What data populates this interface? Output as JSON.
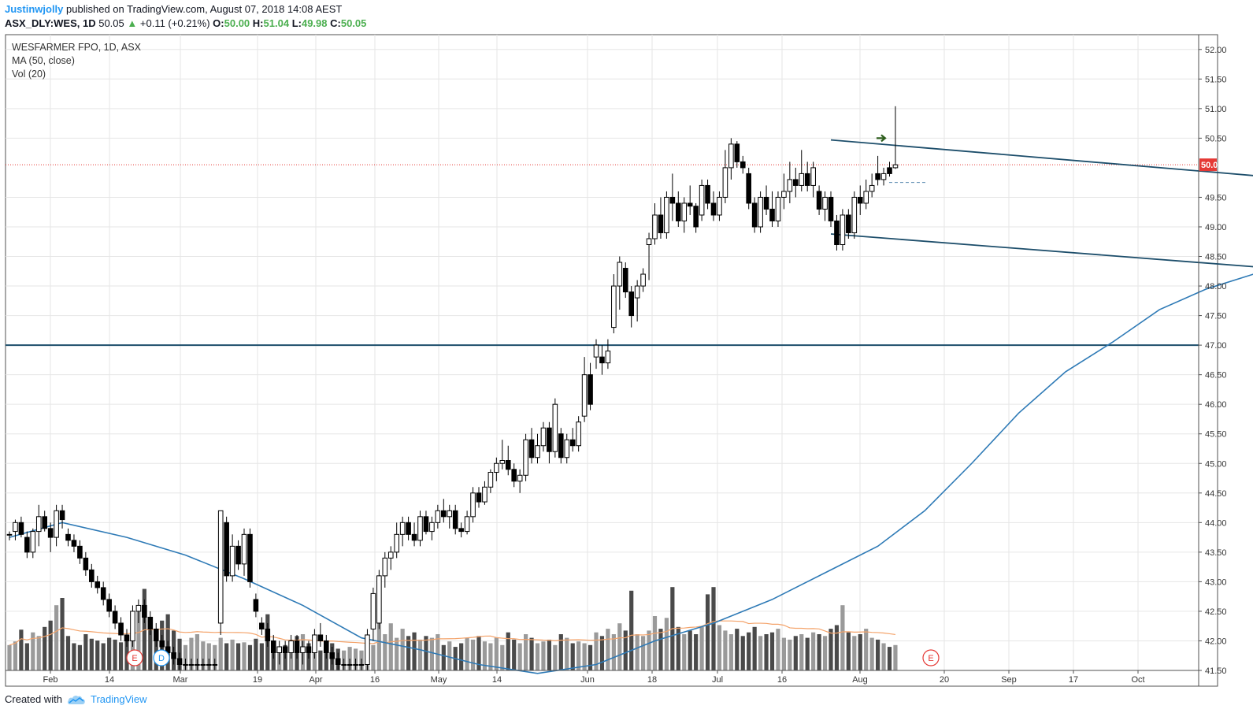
{
  "header": {
    "author": "Justinwjolly",
    "published": "published on TradingView.com, August 07, 2018 14:08 AEST",
    "symbol": "ASX_DLY:WES, 1D",
    "price": "50.05",
    "change_arrow": "▲",
    "change": "+0.11 (+0.21%)",
    "open_label": "O:",
    "open": "50.00",
    "high_label": "H:",
    "high": "51.04",
    "low_label": "L:",
    "low": "49.98",
    "close_label": "C:",
    "close": "50.05"
  },
  "legend": {
    "title": "WESFARMER FPO, 1D, ASX",
    "ma": "MA (50, close)",
    "vol": "Vol (20)"
  },
  "footer": {
    "created": "Created with",
    "brand": "TradingView"
  },
  "colors": {
    "price_line": "#e53935",
    "ma_line": "#2e7ab6",
    "vol_ma": "#f4a36a",
    "channel": "#1d4e6b",
    "support": "#1d4e6b",
    "arrow": "#2e5e1e"
  },
  "events": [
    {
      "label": "E",
      "x_label": "Feb 20",
      "color": "#e53935"
    },
    {
      "label": "D",
      "x_label": "Feb 22",
      "color": "#2196f3"
    },
    {
      "label": "E",
      "x_label": "Aug 17",
      "color": "#e53935"
    }
  ],
  "chart_data": {
    "type": "candlestick",
    "y_ticks": [
      "52.00",
      "51.50",
      "51.00",
      "50.50",
      "50.05",
      "49.50",
      "49.00",
      "48.50",
      "48.00",
      "47.50",
      "47.00",
      "46.50",
      "46.00",
      "45.50",
      "45.00",
      "44.50",
      "44.00",
      "43.50",
      "43.00",
      "42.50",
      "42.00",
      "41.50"
    ],
    "y_range": [
      41.5,
      52.25
    ],
    "x_ticks": [
      "Feb",
      "14",
      "Mar",
      "19",
      "Apr",
      "16",
      "May",
      "14",
      "Jun",
      "18",
      "Jul",
      "16",
      "Aug",
      "20",
      "Sep",
      "17",
      "Oct"
    ],
    "last_price": 50.05,
    "support_level": 47.0,
    "ohlc": [
      [
        43.8,
        43.85,
        43.7,
        43.8
      ],
      [
        43.85,
        44.05,
        43.7,
        44.0
      ],
      [
        44.0,
        44.1,
        43.75,
        43.8
      ],
      [
        43.75,
        43.85,
        43.4,
        43.5
      ],
      [
        43.5,
        43.9,
        43.4,
        43.85
      ],
      [
        43.85,
        44.3,
        43.6,
        44.1
      ],
      [
        44.1,
        44.2,
        43.85,
        43.9
      ],
      [
        43.9,
        44.0,
        43.5,
        43.75
      ],
      [
        43.75,
        44.3,
        43.6,
        44.2
      ],
      [
        44.2,
        44.3,
        43.9,
        44.05
      ],
      [
        43.8,
        43.9,
        43.6,
        43.7
      ],
      [
        43.7,
        43.8,
        43.5,
        43.6
      ],
      [
        43.6,
        43.7,
        43.3,
        43.4
      ],
      [
        43.4,
        43.5,
        43.1,
        43.2
      ],
      [
        43.2,
        43.3,
        42.9,
        43.0
      ],
      [
        43.0,
        43.1,
        42.8,
        42.9
      ],
      [
        42.9,
        43.0,
        42.6,
        42.7
      ],
      [
        42.7,
        42.8,
        42.4,
        42.5
      ],
      [
        42.5,
        42.6,
        42.2,
        42.3
      ],
      [
        42.3,
        42.4,
        42.0,
        42.1
      ],
      [
        42.1,
        42.2,
        41.9,
        42.0
      ],
      [
        42.0,
        42.6,
        41.9,
        42.5
      ],
      [
        42.5,
        42.7,
        42.3,
        42.6
      ],
      [
        42.6,
        42.7,
        42.3,
        42.4
      ],
      [
        42.4,
        42.5,
        42.1,
        42.2
      ],
      [
        42.2,
        42.3,
        41.9,
        42.0
      ],
      [
        42.0,
        42.1,
        41.8,
        41.9
      ],
      [
        41.9,
        42.0,
        41.7,
        41.8
      ],
      [
        41.8,
        41.9,
        41.6,
        41.7
      ],
      [
        41.7,
        41.8,
        41.5,
        41.6
      ],
      [
        41.6,
        41.7,
        41.5,
        41.6
      ],
      [
        41.6,
        41.7,
        41.5,
        41.6
      ],
      [
        41.6,
        41.7,
        41.5,
        41.6
      ],
      [
        41.6,
        41.7,
        41.5,
        41.6
      ],
      [
        41.6,
        41.7,
        41.5,
        41.6
      ],
      [
        41.6,
        41.7,
        41.5,
        41.6
      ],
      [
        42.3,
        44.2,
        42.1,
        44.2
      ],
      [
        44.0,
        44.1,
        43.0,
        43.1
      ],
      [
        43.1,
        43.8,
        43.0,
        43.6
      ],
      [
        43.6,
        43.7,
        43.2,
        43.3
      ],
      [
        43.3,
        43.9,
        43.1,
        43.8
      ],
      [
        43.8,
        43.9,
        42.9,
        43.0
      ],
      [
        42.7,
        42.8,
        42.4,
        42.5
      ],
      [
        42.3,
        42.4,
        42.1,
        42.2
      ],
      [
        42.2,
        42.3,
        41.9,
        42.0
      ],
      [
        42.0,
        42.1,
        41.7,
        41.8
      ],
      [
        41.8,
        42.0,
        41.6,
        41.9
      ],
      [
        41.9,
        42.0,
        41.7,
        41.8
      ],
      [
        41.8,
        42.1,
        41.7,
        42.0
      ],
      [
        42.0,
        42.1,
        41.7,
        41.8
      ],
      [
        41.8,
        42.0,
        41.6,
        41.9
      ],
      [
        41.9,
        42.0,
        41.7,
        41.8
      ],
      [
        41.8,
        42.2,
        41.7,
        42.1
      ],
      [
        42.1,
        42.3,
        41.9,
        42.0
      ],
      [
        42.0,
        42.1,
        41.7,
        41.8
      ],
      [
        41.8,
        41.9,
        41.6,
        41.7
      ],
      [
        41.7,
        41.8,
        41.5,
        41.6
      ],
      [
        41.6,
        41.7,
        41.5,
        41.6
      ],
      [
        41.6,
        41.7,
        41.5,
        41.6
      ],
      [
        41.6,
        41.7,
        41.5,
        41.6
      ],
      [
        41.6,
        41.7,
        41.5,
        41.6
      ],
      [
        41.6,
        42.2,
        41.5,
        42.1
      ],
      [
        42.2,
        42.9,
        42.0,
        42.8
      ],
      [
        42.3,
        43.2,
        42.2,
        43.1
      ],
      [
        43.1,
        43.5,
        42.9,
        43.4
      ],
      [
        43.4,
        43.6,
        43.2,
        43.5
      ],
      [
        43.5,
        44.0,
        43.4,
        43.8
      ],
      [
        43.8,
        44.1,
        43.6,
        44.0
      ],
      [
        44.0,
        44.1,
        43.7,
        43.8
      ],
      [
        43.8,
        44.0,
        43.6,
        43.7
      ],
      [
        43.7,
        44.2,
        43.6,
        44.1
      ],
      [
        44.1,
        44.2,
        43.8,
        43.85
      ],
      [
        43.85,
        44.1,
        43.7,
        44.0
      ],
      [
        44.0,
        44.3,
        43.9,
        44.2
      ],
      [
        44.2,
        44.4,
        44.0,
        44.1
      ],
      [
        44.1,
        44.3,
        43.9,
        44.2
      ],
      [
        44.2,
        44.3,
        43.8,
        43.9
      ],
      [
        43.9,
        44.0,
        43.75,
        43.85
      ],
      [
        43.85,
        44.2,
        43.8,
        44.1
      ],
      [
        44.1,
        44.6,
        44.0,
        44.5
      ],
      [
        44.5,
        44.6,
        44.25,
        44.35
      ],
      [
        44.35,
        44.7,
        44.3,
        44.6
      ],
      [
        44.6,
        44.9,
        44.5,
        44.85
      ],
      [
        44.85,
        45.1,
        44.7,
        45.0
      ],
      [
        45.0,
        45.4,
        44.9,
        45.05
      ],
      [
        45.05,
        45.3,
        44.8,
        44.9
      ],
      [
        44.9,
        45.0,
        44.6,
        44.7
      ],
      [
        44.7,
        44.9,
        44.5,
        44.8
      ],
      [
        44.8,
        45.5,
        44.7,
        45.4
      ],
      [
        45.4,
        45.6,
        45.0,
        45.1
      ],
      [
        45.1,
        45.5,
        45.0,
        45.3
      ],
      [
        45.3,
        45.7,
        45.2,
        45.6
      ],
      [
        45.6,
        45.7,
        45.0,
        45.2
      ],
      [
        45.2,
        46.1,
        45.1,
        46.0
      ],
      [
        45.5,
        45.6,
        45.0,
        45.1
      ],
      [
        45.1,
        45.5,
        45.0,
        45.4
      ],
      [
        45.4,
        45.6,
        45.2,
        45.3
      ],
      [
        45.3,
        45.8,
        45.2,
        45.7
      ],
      [
        45.8,
        46.8,
        45.7,
        46.5
      ],
      [
        46.5,
        46.7,
        45.9,
        46.0
      ],
      [
        46.8,
        47.1,
        46.6,
        47.0
      ],
      [
        46.8,
        47.0,
        46.5,
        46.7
      ],
      [
        46.7,
        47.1,
        46.6,
        46.9
      ],
      [
        47.3,
        48.2,
        47.2,
        48.0
      ],
      [
        48.0,
        48.5,
        47.6,
        48.4
      ],
      [
        48.3,
        48.4,
        47.8,
        47.9
      ],
      [
        47.9,
        48.0,
        47.3,
        47.5
      ],
      [
        47.8,
        48.1,
        47.4,
        48.0
      ],
      [
        48.0,
        48.3,
        47.9,
        48.2
      ],
      [
        48.7,
        48.9,
        48.1,
        48.8
      ],
      [
        48.8,
        49.4,
        48.7,
        49.2
      ],
      [
        49.2,
        49.5,
        48.8,
        48.9
      ],
      [
        48.9,
        49.6,
        48.8,
        49.5
      ],
      [
        49.5,
        49.9,
        49.1,
        49.4
      ],
      [
        49.4,
        49.6,
        49.0,
        49.1
      ],
      [
        49.1,
        49.5,
        48.9,
        49.4
      ],
      [
        49.4,
        49.7,
        49.2,
        49.35
      ],
      [
        49.35,
        49.4,
        48.9,
        49.0
      ],
      [
        49.2,
        49.8,
        49.1,
        49.7
      ],
      [
        49.7,
        49.8,
        49.3,
        49.4
      ],
      [
        49.4,
        49.6,
        49.1,
        49.2
      ],
      [
        49.2,
        49.6,
        49.1,
        49.5
      ],
      [
        49.5,
        50.3,
        49.4,
        50.0
      ],
      [
        50.0,
        50.5,
        49.8,
        50.4
      ],
      [
        50.4,
        50.45,
        50.0,
        50.1
      ],
      [
        50.1,
        50.2,
        49.9,
        50.0
      ],
      [
        49.9,
        50.0,
        49.3,
        49.4
      ],
      [
        49.4,
        49.5,
        48.9,
        49.0
      ],
      [
        49.0,
        49.6,
        48.9,
        49.5
      ],
      [
        49.5,
        49.7,
        49.2,
        49.3
      ],
      [
        49.3,
        49.6,
        49.0,
        49.1
      ],
      [
        49.1,
        49.6,
        49.0,
        49.5
      ],
      [
        49.5,
        49.9,
        49.3,
        49.6
      ],
      [
        49.6,
        50.1,
        49.4,
        49.8
      ],
      [
        49.8,
        50.0,
        49.5,
        49.7
      ],
      [
        49.7,
        50.3,
        49.6,
        49.9
      ],
      [
        49.9,
        50.1,
        49.6,
        49.7
      ],
      [
        49.7,
        50.1,
        49.5,
        50.0
      ],
      [
        49.6,
        49.7,
        49.2,
        49.3
      ],
      [
        49.3,
        49.6,
        49.1,
        49.5
      ],
      [
        49.5,
        49.6,
        49.0,
        49.1
      ],
      [
        49.1,
        49.2,
        48.6,
        48.7
      ],
      [
        48.7,
        49.3,
        48.6,
        49.2
      ],
      [
        49.2,
        49.3,
        48.8,
        48.9
      ],
      [
        48.9,
        49.6,
        48.8,
        49.5
      ],
      [
        49.5,
        49.7,
        49.2,
        49.4
      ],
      [
        49.4,
        49.8,
        49.3,
        49.6
      ],
      [
        49.6,
        49.9,
        49.5,
        49.7
      ],
      [
        49.9,
        50.2,
        49.7,
        49.8
      ],
      [
        49.8,
        50.0,
        49.7,
        49.9
      ],
      [
        50.0,
        50.1,
        49.85,
        49.9
      ],
      [
        50.0,
        51.04,
        49.98,
        50.05
      ]
    ],
    "volume_relative": [
      0.28,
      0.32,
      0.45,
      0.3,
      0.42,
      0.38,
      0.48,
      0.55,
      0.72,
      0.8,
      0.38,
      0.3,
      0.28,
      0.4,
      0.35,
      0.33,
      0.3,
      0.36,
      0.34,
      0.31,
      0.34,
      0.38,
      0.65,
      0.9,
      0.48,
      0.42,
      0.55,
      0.62,
      0.44,
      0.35,
      0.28,
      0.36,
      0.4,
      0.32,
      0.3,
      0.28,
      0.36,
      0.3,
      0.34,
      0.3,
      0.31,
      0.28,
      0.35,
      0.3,
      0.62,
      0.32,
      0.26,
      0.28,
      0.34,
      0.38,
      0.4,
      0.3,
      0.26,
      0.22,
      0.28,
      0.3,
      0.24,
      0.22,
      0.26,
      0.24,
      0.22,
      0.2,
      0.28,
      0.72,
      0.4,
      0.52,
      0.36,
      0.46,
      0.38,
      0.42,
      0.34,
      0.38,
      0.36,
      0.4,
      0.28,
      0.32,
      0.26,
      0.3,
      0.36,
      0.34,
      0.38,
      0.32,
      0.3,
      0.36,
      0.28,
      0.42,
      0.34,
      0.3,
      0.4,
      0.36,
      0.3,
      0.32,
      0.34,
      0.28,
      0.4,
      0.36,
      0.3,
      0.32,
      0.3,
      0.28,
      0.42,
      0.38,
      0.46,
      0.4,
      0.52,
      0.44,
      0.88,
      0.4,
      0.38,
      0.44,
      0.6,
      0.46,
      0.58,
      0.92,
      0.48,
      0.4,
      0.44,
      0.4,
      0.48,
      0.84,
      0.92,
      0.5,
      0.44,
      0.4,
      0.46,
      0.38,
      0.42,
      0.48,
      0.38,
      0.4,
      0.42,
      0.46,
      0.36,
      0.34,
      0.38,
      0.4,
      0.36,
      0.42,
      0.4,
      0.38,
      0.46,
      0.5,
      0.72,
      0.42,
      0.38,
      0.4,
      0.46,
      0.36,
      0.34,
      0.3,
      0.26,
      0.28
    ],
    "ma50": [
      [
        0,
        43.75
      ],
      [
        9,
        44.0
      ],
      [
        20,
        43.75
      ],
      [
        30,
        43.45
      ],
      [
        40,
        43.05
      ],
      [
        50,
        42.6
      ],
      [
        60,
        42.05
      ],
      [
        70,
        41.85
      ],
      [
        80,
        41.6
      ],
      [
        90,
        41.45
      ],
      [
        100,
        41.6
      ],
      [
        110,
        42.0
      ],
      [
        120,
        42.3
      ],
      [
        130,
        42.7
      ],
      [
        140,
        43.2
      ],
      [
        148,
        43.6
      ],
      [
        156,
        44.2
      ],
      [
        164,
        45.0
      ],
      [
        172,
        45.85
      ],
      [
        180,
        46.55
      ],
      [
        188,
        47.05
      ],
      [
        196,
        47.6
      ],
      [
        204,
        47.95
      ],
      [
        212,
        48.2
      ],
      [
        220,
        48.5
      ]
    ],
    "channel_upper": [
      [
        140,
        50.47
      ],
      [
        244,
        49.6
      ]
    ],
    "channel_lower": [
      [
        140,
        48.88
      ],
      [
        244,
        48.08
      ]
    ]
  }
}
